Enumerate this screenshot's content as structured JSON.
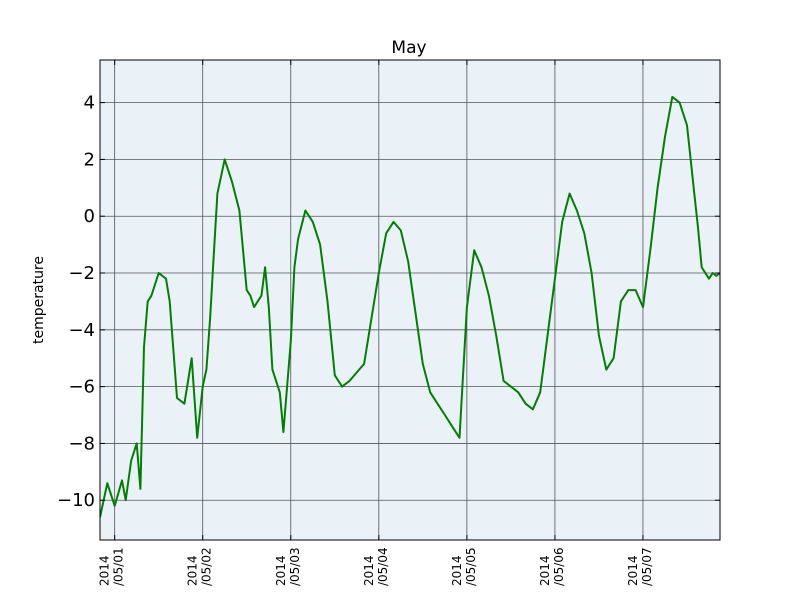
{
  "chart_data": {
    "type": "line",
    "title": "May",
    "xlabel": "",
    "ylabel": "temperature",
    "x_tick_labels": [
      [
        "2014",
        "/05/01"
      ],
      [
        "2014",
        "/05/02"
      ],
      [
        "2014",
        "/05/03"
      ],
      [
        "2014",
        "/05/04"
      ],
      [
        "2014",
        "/05/05"
      ],
      [
        "2014",
        "/05/06"
      ],
      [
        "2014",
        "/05/07"
      ]
    ],
    "x_tick_days": [
      1,
      2,
      3,
      4,
      5,
      6,
      7
    ],
    "y_ticks": [
      -10,
      -8,
      -6,
      -4,
      -2,
      0,
      2,
      4
    ],
    "y_tick_labels": [
      "−10",
      "−8",
      "−6",
      "−4",
      "−2",
      "0",
      "2",
      "4"
    ],
    "xlim": [
      "2014-04-30 20:00",
      "2014-05-07 21:00"
    ],
    "ylim": [
      -11.4,
      5.5
    ],
    "grid": true,
    "background_color": "#eaf2f8",
    "line_color": "#008000",
    "series": [
      {
        "x": [
          "2014-04-30 20:00",
          "2014-04-30 22:00",
          "2014-05-01 00:00",
          "2014-05-01 02:00",
          "2014-05-01 03:00",
          "2014-05-01 04:30",
          "2014-05-01 06:00",
          "2014-05-01 07:00",
          "2014-05-01 08:00",
          "2014-05-01 09:00",
          "2014-05-01 10:00",
          "2014-05-01 12:00",
          "2014-05-01 14:00",
          "2014-05-01 15:00",
          "2014-05-01 17:00",
          "2014-05-01 19:00",
          "2014-05-01 21:00",
          "2014-05-01 22:30",
          "2014-05-02 00:00",
          "2014-05-02 01:00",
          "2014-05-02 02:00",
          "2014-05-02 03:00",
          "2014-05-02 04:00",
          "2014-05-02 06:00",
          "2014-05-02 08:00",
          "2014-05-02 10:00",
          "2014-05-02 12:00",
          "2014-05-02 13:00",
          "2014-05-02 14:00",
          "2014-05-02 16:00",
          "2014-05-02 17:00",
          "2014-05-02 18:00",
          "2014-05-02 19:00",
          "2014-05-02 21:00",
          "2014-05-02 22:00",
          "2014-05-03 00:00",
          "2014-05-03 01:00",
          "2014-05-03 02:00",
          "2014-05-03 04:00",
          "2014-05-03 06:00",
          "2014-05-03 08:00",
          "2014-05-03 10:00",
          "2014-05-03 12:00",
          "2014-05-03 14:00",
          "2014-05-03 16:00",
          "2014-05-03 18:00",
          "2014-05-03 20:00",
          "2014-05-04 00:00",
          "2014-05-04 02:00",
          "2014-05-04 04:00",
          "2014-05-04 06:00",
          "2014-05-04 08:00",
          "2014-05-04 10:00",
          "2014-05-04 12:00",
          "2014-05-04 14:00",
          "2014-05-04 16:00",
          "2014-05-04 18:00",
          "2014-05-04 20:00",
          "2014-05-04 22:00",
          "2014-05-05 00:00",
          "2014-05-05 02:00",
          "2014-05-05 04:00",
          "2014-05-05 06:00",
          "2014-05-05 08:00",
          "2014-05-05 10:00",
          "2014-05-05 12:00",
          "2014-05-05 14:00",
          "2014-05-05 16:00",
          "2014-05-05 18:00",
          "2014-05-05 20:00",
          "2014-05-06 00:00",
          "2014-05-06 02:00",
          "2014-05-06 04:00",
          "2014-05-06 06:00",
          "2014-05-06 08:00",
          "2014-05-06 10:00",
          "2014-05-06 12:00",
          "2014-05-06 14:00",
          "2014-05-06 16:00",
          "2014-05-06 18:00",
          "2014-05-06 20:00",
          "2014-05-06 22:00",
          "2014-05-07 00:00",
          "2014-05-07 02:00",
          "2014-05-07 04:00",
          "2014-05-07 06:00",
          "2014-05-07 08:00",
          "2014-05-07 10:00",
          "2014-05-07 12:00",
          "2014-05-07 14:00",
          "2014-05-07 15:00",
          "2014-05-07 16:00",
          "2014-05-07 18:00",
          "2014-05-07 19:00",
          "2014-05-07 20:00",
          "2014-05-07 21:00"
        ],
        "y": [
          -10.6,
          -9.4,
          -10.2,
          -9.3,
          -10.0,
          -8.6,
          -8.0,
          -9.6,
          -4.6,
          -3.0,
          -2.8,
          -2.0,
          -2.2,
          -3.0,
          -6.4,
          -6.6,
          -5.0,
          -7.8,
          -6.0,
          -5.4,
          -3.6,
          -1.4,
          0.8,
          2.0,
          1.2,
          0.2,
          -2.6,
          -2.8,
          -3.2,
          -2.8,
          -1.8,
          -3.2,
          -5.4,
          -6.2,
          -7.6,
          -4.4,
          -1.8,
          -0.8,
          0.2,
          -0.2,
          -1.0,
          -3.0,
          -5.6,
          -6.0,
          -5.8,
          -5.5,
          -5.2,
          -2.0,
          -0.6,
          -0.2,
          -0.5,
          -1.6,
          -3.4,
          -5.2,
          -6.2,
          -6.6,
          -7.0,
          -7.4,
          -7.8,
          -3.2,
          -1.2,
          -1.8,
          -2.8,
          -4.2,
          -5.8,
          -6.0,
          -6.2,
          -6.6,
          -6.8,
          -6.2,
          -2.2,
          -0.2,
          0.8,
          0.2,
          -0.6,
          -2.0,
          -4.2,
          -5.4,
          -5.0,
          -3.0,
          -2.6,
          -2.6,
          -3.2,
          -1.2,
          1.0,
          2.8,
          4.2,
          4.0,
          3.2,
          0.8,
          -0.4,
          -1.8,
          -2.2,
          -2.0,
          -2.1,
          -2.0
        ]
      }
    ]
  }
}
